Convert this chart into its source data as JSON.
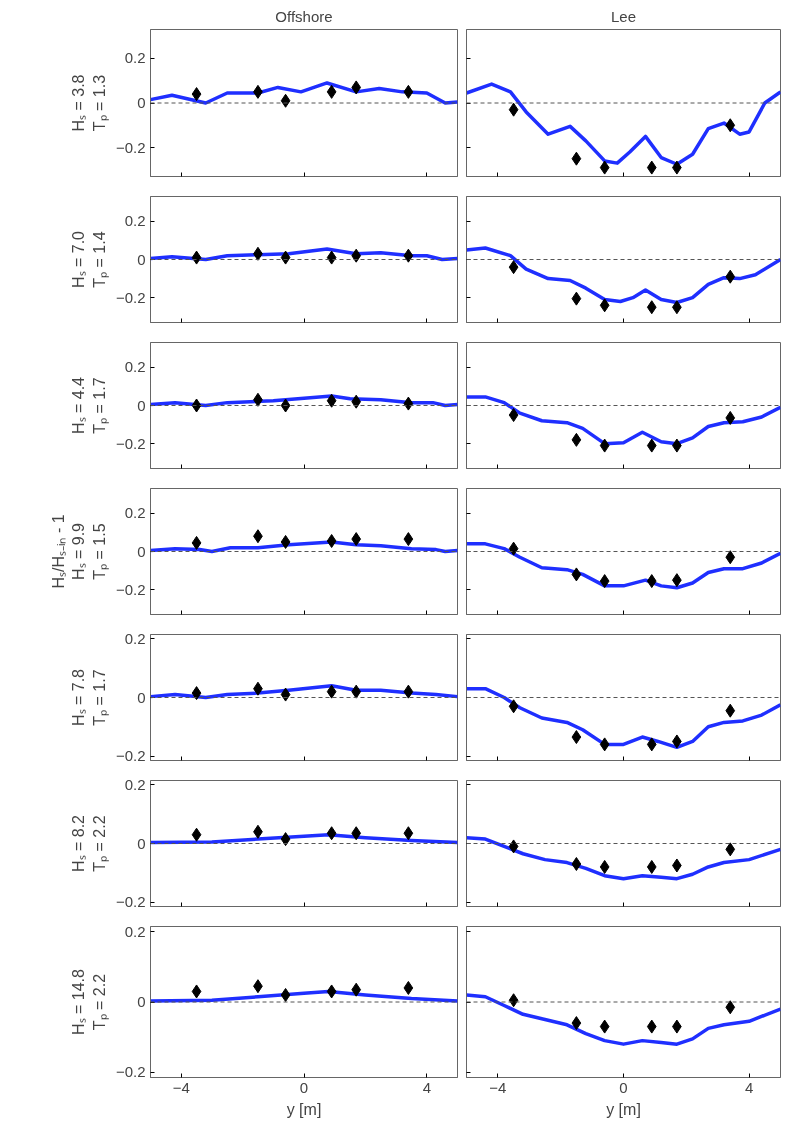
{
  "chart_data": [
    {
      "type": "line",
      "title": "Offshore",
      "ylabel": "Hₛ = 3.8\nTₚ = 1.3",
      "xlim": [
        -5,
        5
      ],
      "xticks": [
        -4,
        0,
        4
      ],
      "ylim": [
        -0.33,
        0.33
      ],
      "yticks": [
        -0.2,
        0,
        0.2
      ],
      "tick_labels": "y",
      "ref_lines": [
        {
          "axis": "y",
          "value": 0,
          "color": "#555555",
          "line_style": "dashed"
        }
      ],
      "series": [
        {
          "type": "line",
          "color": "#1f2fff",
          "x": [
            -5,
            -4.3,
            -3.2,
            -2.5,
            -1.5,
            -0.85,
            -0.1,
            0.75,
            1.7,
            2.45,
            3.2,
            4.0,
            4.6,
            5
          ],
          "values": [
            0.015,
            0.035,
            0.0,
            0.045,
            0.045,
            0.07,
            0.05,
            0.09,
            0.05,
            0.065,
            0.05,
            0.045,
            0.0,
            0.005
          ]
        },
        {
          "type": "scatter",
          "color": "#000000",
          "marker": "diamond",
          "x": [
            -3.5,
            -1.5,
            -0.6,
            0.9,
            1.7,
            3.4
          ],
          "values": [
            0.04,
            0.05,
            0.01,
            0.05,
            0.07,
            0.05
          ]
        }
      ]
    },
    {
      "type": "line",
      "title": "Lee",
      "xlim": [
        -5,
        5
      ],
      "xticks": [
        -4,
        0,
        4
      ],
      "ylim": [
        -0.33,
        0.33
      ],
      "yticks": [
        -0.2,
        0,
        0.2
      ],
      "tick_labels": false,
      "ref_lines": [
        {
          "axis": "y",
          "value": 0,
          "color": "#555555",
          "line_style": "dashed"
        }
      ],
      "series": [
        {
          "type": "line",
          "color": "#1f2fff",
          "x": [
            -5,
            -4.2,
            -3.6,
            -3.1,
            -2.4,
            -1.7,
            -1.2,
            -0.6,
            -0.2,
            0.2,
            0.7,
            1.2,
            1.7,
            2.2,
            2.7,
            3.2,
            3.7,
            4.0,
            4.5,
            5
          ],
          "values": [
            0.045,
            0.085,
            0.05,
            -0.04,
            -0.14,
            -0.105,
            -0.17,
            -0.26,
            -0.27,
            -0.22,
            -0.15,
            -0.245,
            -0.275,
            -0.23,
            -0.115,
            -0.09,
            -0.14,
            -0.13,
            0.0,
            0.05
          ]
        },
        {
          "type": "scatter",
          "color": "#000000",
          "marker": "diamond",
          "x": [
            -3.5,
            -1.5,
            -0.6,
            0.9,
            1.7,
            3.4
          ],
          "values": [
            -0.03,
            -0.25,
            -0.29,
            -0.29,
            -0.29,
            -0.1
          ]
        }
      ]
    },
    {
      "type": "line",
      "ylabel": "Hₛ = 7.0\nTₚ = 1.4",
      "xlim": [
        -5,
        5
      ],
      "xticks": [
        -4,
        0,
        4
      ],
      "ylim": [
        -0.33,
        0.33
      ],
      "yticks": [
        -0.2,
        0,
        0.2
      ],
      "tick_labels": "y",
      "ref_lines": [
        {
          "axis": "y",
          "value": 0,
          "color": "#555555",
          "line_style": "dashed"
        }
      ],
      "series": [
        {
          "type": "line",
          "color": "#1f2fff",
          "x": [
            -5,
            -4.3,
            -3.2,
            -2.5,
            -1.5,
            -0.5,
            0.75,
            1.7,
            2.5,
            3.5,
            4.0,
            4.5,
            5
          ],
          "values": [
            0.005,
            0.015,
            0.0,
            0.02,
            0.025,
            0.03,
            0.055,
            0.03,
            0.035,
            0.02,
            0.02,
            0.0,
            0.005
          ]
        },
        {
          "type": "scatter",
          "color": "#000000",
          "marker": "diamond",
          "x": [
            -3.5,
            -1.5,
            -0.6,
            0.9,
            1.7,
            3.4
          ],
          "values": [
            0.01,
            0.03,
            0.01,
            0.01,
            0.02,
            0.02
          ]
        }
      ]
    },
    {
      "type": "line",
      "xlim": [
        -5,
        5
      ],
      "xticks": [
        -4,
        0,
        4
      ],
      "ylim": [
        -0.33,
        0.33
      ],
      "yticks": [
        -0.2,
        0,
        0.2
      ],
      "tick_labels": false,
      "ref_lines": [
        {
          "axis": "y",
          "value": 0,
          "color": "#555555",
          "line_style": "dashed"
        }
      ],
      "series": [
        {
          "type": "line",
          "color": "#1f2fff",
          "x": [
            -5,
            -4.4,
            -3.6,
            -3.1,
            -2.4,
            -1.7,
            -1.2,
            -0.6,
            -0.1,
            0.3,
            0.7,
            1.2,
            1.7,
            2.2,
            2.7,
            3.2,
            3.7,
            4.2,
            5
          ],
          "values": [
            0.05,
            0.06,
            0.02,
            -0.05,
            -0.1,
            -0.11,
            -0.15,
            -0.21,
            -0.22,
            -0.2,
            -0.16,
            -0.21,
            -0.225,
            -0.2,
            -0.13,
            -0.095,
            -0.1,
            -0.08,
            0.0
          ]
        },
        {
          "type": "scatter",
          "color": "#000000",
          "marker": "diamond",
          "x": [
            -3.5,
            -1.5,
            -0.6,
            0.9,
            1.7,
            3.4
          ],
          "values": [
            -0.04,
            -0.205,
            -0.24,
            -0.25,
            -0.25,
            -0.09
          ]
        }
      ]
    },
    {
      "type": "line",
      "ylabel": "Hₛ = 4.4\nTₚ = 1.7",
      "xlim": [
        -5,
        5
      ],
      "xticks": [
        -4,
        0,
        4
      ],
      "ylim": [
        -0.33,
        0.33
      ],
      "yticks": [
        -0.2,
        0,
        0.2
      ],
      "tick_labels": "y",
      "ref_lines": [
        {
          "axis": "y",
          "value": 0,
          "color": "#555555",
          "line_style": "dashed"
        }
      ],
      "series": [
        {
          "type": "line",
          "color": "#1f2fff",
          "x": [
            -5,
            -4.2,
            -3.2,
            -2.5,
            -1.0,
            0.9,
            1.5,
            2.5,
            3.5,
            4.2,
            4.6,
            5
          ],
          "values": [
            0.005,
            0.015,
            0.0,
            0.015,
            0.025,
            0.05,
            0.035,
            0.03,
            0.015,
            0.015,
            0.0,
            0.005
          ]
        },
        {
          "type": "scatter",
          "color": "#000000",
          "marker": "diamond",
          "x": [
            -3.5,
            -1.5,
            -0.6,
            0.9,
            1.7,
            3.4
          ],
          "values": [
            0.0,
            0.03,
            0.0,
            0.025,
            0.02,
            0.01
          ]
        }
      ]
    },
    {
      "type": "line",
      "xlim": [
        -5,
        5
      ],
      "xticks": [
        -4,
        0,
        4
      ],
      "ylim": [
        -0.33,
        0.33
      ],
      "yticks": [
        -0.2,
        0,
        0.2
      ],
      "tick_labels": false,
      "ref_lines": [
        {
          "axis": "y",
          "value": 0,
          "color": "#555555",
          "line_style": "dashed"
        }
      ],
      "series": [
        {
          "type": "line",
          "color": "#1f2fff",
          "x": [
            -5,
            -4.4,
            -3.8,
            -3.3,
            -2.6,
            -1.8,
            -1.3,
            -0.6,
            0,
            0.6,
            1.2,
            1.7,
            2.2,
            2.7,
            3.2,
            3.8,
            4.4,
            5
          ],
          "values": [
            0.045,
            0.045,
            0.015,
            -0.04,
            -0.08,
            -0.09,
            -0.12,
            -0.2,
            -0.195,
            -0.14,
            -0.19,
            -0.2,
            -0.17,
            -0.11,
            -0.09,
            -0.085,
            -0.06,
            -0.01
          ]
        },
        {
          "type": "scatter",
          "color": "#000000",
          "marker": "diamond",
          "x": [
            -3.5,
            -1.5,
            -0.6,
            0.9,
            1.7,
            3.4
          ],
          "values": [
            -0.05,
            -0.18,
            -0.21,
            -0.21,
            -0.21,
            -0.065
          ]
        }
      ]
    },
    {
      "type": "line",
      "ylabel": "Hₛ/Hₛ₋ᵢₙ - 1\nHₛ = 9.9\nTₚ = 1.5",
      "xlim": [
        -5,
        5
      ],
      "xticks": [
        -4,
        0,
        4
      ],
      "ylim": [
        -0.33,
        0.33
      ],
      "yticks": [
        -0.2,
        0,
        0.2
      ],
      "tick_labels": "y",
      "ref_lines": [
        {
          "axis": "y",
          "value": 0,
          "color": "#555555",
          "line_style": "dashed"
        }
      ],
      "series": [
        {
          "type": "line",
          "color": "#1f2fff",
          "x": [
            -5,
            -4.2,
            -3.4,
            -3.0,
            -2.4,
            -1.5,
            -0.5,
            0.9,
            1.7,
            2.5,
            3.5,
            4.3,
            4.6,
            5
          ],
          "values": [
            0.005,
            0.015,
            0.01,
            0.0,
            0.02,
            0.02,
            0.035,
            0.05,
            0.035,
            0.03,
            0.015,
            0.01,
            0.0,
            0.005
          ]
        },
        {
          "type": "scatter",
          "color": "#000000",
          "marker": "diamond",
          "x": [
            -3.5,
            -1.5,
            -0.6,
            0.9,
            1.7,
            3.4
          ],
          "values": [
            0.045,
            0.08,
            0.05,
            0.055,
            0.065,
            0.065
          ]
        }
      ]
    },
    {
      "type": "line",
      "xlim": [
        -5,
        5
      ],
      "xticks": [
        -4,
        0,
        4
      ],
      "ylim": [
        -0.33,
        0.33
      ],
      "yticks": [
        -0.2,
        0,
        0.2
      ],
      "tick_labels": false,
      "ref_lines": [
        {
          "axis": "y",
          "value": 0,
          "color": "#555555",
          "line_style": "dashed"
        }
      ],
      "series": [
        {
          "type": "line",
          "color": "#1f2fff",
          "x": [
            -5,
            -4.4,
            -3.8,
            -3.3,
            -2.6,
            -1.8,
            -1.3,
            -0.6,
            0,
            0.7,
            1.2,
            1.7,
            2.2,
            2.7,
            3.2,
            3.8,
            4.4,
            5
          ],
          "values": [
            0.04,
            0.04,
            0.015,
            -0.03,
            -0.085,
            -0.095,
            -0.12,
            -0.18,
            -0.18,
            -0.15,
            -0.18,
            -0.19,
            -0.165,
            -0.11,
            -0.09,
            -0.09,
            -0.06,
            -0.01
          ]
        },
        {
          "type": "scatter",
          "color": "#000000",
          "marker": "diamond",
          "x": [
            -3.5,
            -1.5,
            -0.6,
            0.9,
            1.7,
            3.4
          ],
          "values": [
            0.015,
            -0.12,
            -0.155,
            -0.155,
            -0.15,
            -0.03
          ]
        }
      ]
    },
    {
      "type": "line",
      "ylabel": "Hₛ = 7.8\nTₚ = 1.7",
      "xlim": [
        -5,
        5
      ],
      "xticks": [
        -4,
        0,
        4
      ],
      "ylim": [
        -0.215,
        0.215
      ],
      "yticks": [
        -0.2,
        0,
        0.2
      ],
      "tick_labels": "y",
      "ref_lines": [
        {
          "axis": "y",
          "value": 0,
          "color": "#555555",
          "line_style": "dashed"
        }
      ],
      "series": [
        {
          "type": "line",
          "color": "#1f2fff",
          "x": [
            -5,
            -4.2,
            -3.2,
            -2.5,
            -1.5,
            -0.5,
            0.9,
            1.7,
            2.5,
            3.5,
            4.3,
            5
          ],
          "values": [
            0.003,
            0.01,
            0.0,
            0.01,
            0.015,
            0.025,
            0.04,
            0.025,
            0.025,
            0.015,
            0.01,
            0.003
          ]
        },
        {
          "type": "scatter",
          "color": "#000000",
          "marker": "diamond",
          "x": [
            -3.5,
            -1.5,
            -0.6,
            0.9,
            1.7,
            3.4
          ],
          "values": [
            0.015,
            0.03,
            0.01,
            0.02,
            0.02,
            0.02
          ]
        }
      ]
    },
    {
      "type": "line",
      "xlim": [
        -5,
        5
      ],
      "xticks": [
        -4,
        0,
        4
      ],
      "ylim": [
        -0.215,
        0.215
      ],
      "yticks": [
        -0.2,
        0,
        0.2
      ],
      "tick_labels": false,
      "ref_lines": [
        {
          "axis": "y",
          "value": 0,
          "color": "#555555",
          "line_style": "dashed"
        }
      ],
      "series": [
        {
          "type": "line",
          "color": "#1f2fff",
          "x": [
            -5,
            -4.4,
            -3.8,
            -3.3,
            -2.6,
            -1.8,
            -1.3,
            -0.6,
            0,
            0.6,
            1.1,
            1.7,
            2.2,
            2.7,
            3.2,
            3.8,
            4.4,
            5
          ],
          "values": [
            0.03,
            0.03,
            0.0,
            -0.035,
            -0.07,
            -0.085,
            -0.11,
            -0.16,
            -0.16,
            -0.135,
            -0.15,
            -0.17,
            -0.15,
            -0.1,
            -0.085,
            -0.08,
            -0.06,
            -0.025
          ]
        },
        {
          "type": "scatter",
          "color": "#000000",
          "marker": "diamond",
          "x": [
            -3.5,
            -1.5,
            -0.6,
            0.9,
            1.7,
            3.4
          ],
          "values": [
            -0.03,
            -0.135,
            -0.16,
            -0.16,
            -0.15,
            -0.045
          ]
        }
      ]
    },
    {
      "type": "line",
      "ylabel": "Hₛ = 8.2\nTₚ = 2.2",
      "xlim": [
        -5,
        5
      ],
      "xticks": [
        -4,
        0,
        4
      ],
      "ylim": [
        -0.215,
        0.215
      ],
      "yticks": [
        -0.2,
        0,
        0.2
      ],
      "tick_labels": "y",
      "ref_lines": [
        {
          "axis": "y",
          "value": 0,
          "color": "#555555",
          "line_style": "dashed"
        }
      ],
      "series": [
        {
          "type": "line",
          "color": "#1f2fff",
          "x": [
            -5,
            -3,
            -1.5,
            0,
            0.8,
            2,
            3.5,
            5
          ],
          "values": [
            0.003,
            0.005,
            0.015,
            0.025,
            0.03,
            0.02,
            0.01,
            0.003
          ]
        },
        {
          "type": "scatter",
          "color": "#000000",
          "marker": "diamond",
          "x": [
            -3.5,
            -1.5,
            -0.6,
            0.9,
            1.7,
            3.4
          ],
          "values": [
            0.03,
            0.04,
            0.015,
            0.035,
            0.035,
            0.035
          ]
        }
      ]
    },
    {
      "type": "line",
      "xlim": [
        -5,
        5
      ],
      "xticks": [
        -4,
        0,
        4
      ],
      "ylim": [
        -0.215,
        0.215
      ],
      "yticks": [
        -0.2,
        0,
        0.2
      ],
      "tick_labels": false,
      "ref_lines": [
        {
          "axis": "y",
          "value": 0,
          "color": "#555555",
          "line_style": "dashed"
        }
      ],
      "series": [
        {
          "type": "line",
          "color": "#1f2fff",
          "x": [
            -5,
            -4.4,
            -3.8,
            -3.2,
            -2.5,
            -1.8,
            -1.2,
            -0.6,
            0,
            0.6,
            1.2,
            1.7,
            2.2,
            2.7,
            3.2,
            4,
            5
          ],
          "values": [
            0.02,
            0.015,
            -0.01,
            -0.035,
            -0.055,
            -0.065,
            -0.085,
            -0.11,
            -0.12,
            -0.11,
            -0.115,
            -0.12,
            -0.105,
            -0.08,
            -0.065,
            -0.055,
            -0.02
          ]
        },
        {
          "type": "scatter",
          "color": "#000000",
          "marker": "diamond",
          "x": [
            -3.5,
            -1.5,
            -0.6,
            0.9,
            1.7,
            3.4
          ],
          "values": [
            -0.01,
            -0.07,
            -0.08,
            -0.08,
            -0.075,
            -0.02
          ]
        }
      ]
    },
    {
      "type": "line",
      "ylabel": "Hₛ = 14.8\nTₚ = 2.2",
      "xlabel": "y [m]",
      "xlim": [
        -5,
        5
      ],
      "xticks": [
        -4,
        0,
        4
      ],
      "ylim": [
        -0.215,
        0.215
      ],
      "yticks": [
        -0.2,
        0,
        0.2
      ],
      "ref_lines": [
        {
          "axis": "y",
          "value": 0,
          "color": "#555555",
          "line_style": "dashed"
        }
      ],
      "series": [
        {
          "type": "line",
          "color": "#1f2fff",
          "x": [
            -5,
            -3,
            -1.5,
            0,
            0.8,
            2,
            3.5,
            5
          ],
          "values": [
            0.003,
            0.005,
            0.015,
            0.025,
            0.03,
            0.02,
            0.01,
            0.003
          ]
        },
        {
          "type": "scatter",
          "color": "#000000",
          "marker": "diamond",
          "x": [
            -3.5,
            -1.5,
            -0.6,
            0.9,
            1.7,
            3.4
          ],
          "values": [
            0.03,
            0.045,
            0.02,
            0.03,
            0.035,
            0.04
          ]
        }
      ]
    },
    {
      "type": "line",
      "xlabel": "y [m]",
      "xlim": [
        -5,
        5
      ],
      "xticks": [
        -4,
        0,
        4
      ],
      "ylim": [
        -0.215,
        0.215
      ],
      "yticks": [
        -0.2,
        0,
        0.2
      ],
      "tick_labels": "x",
      "ref_lines": [
        {
          "axis": "y",
          "value": 0,
          "color": "#555555",
          "line_style": "dashed"
        }
      ],
      "series": [
        {
          "type": "line",
          "color": "#1f2fff",
          "x": [
            -5,
            -4.4,
            -3.8,
            -3.2,
            -2.5,
            -1.8,
            -1.2,
            -0.6,
            0,
            0.6,
            1.2,
            1.7,
            2.2,
            2.7,
            3.2,
            4,
            5
          ],
          "values": [
            0.02,
            0.015,
            -0.01,
            -0.035,
            -0.05,
            -0.065,
            -0.09,
            -0.11,
            -0.12,
            -0.11,
            -0.115,
            -0.12,
            -0.105,
            -0.075,
            -0.065,
            -0.055,
            -0.02
          ]
        },
        {
          "type": "scatter",
          "color": "#000000",
          "marker": "diamond",
          "x": [
            -3.5,
            -1.5,
            -0.6,
            0.9,
            1.7,
            3.4
          ],
          "values": [
            0.005,
            -0.06,
            -0.07,
            -0.07,
            -0.07,
            -0.015
          ]
        }
      ]
    }
  ]
}
